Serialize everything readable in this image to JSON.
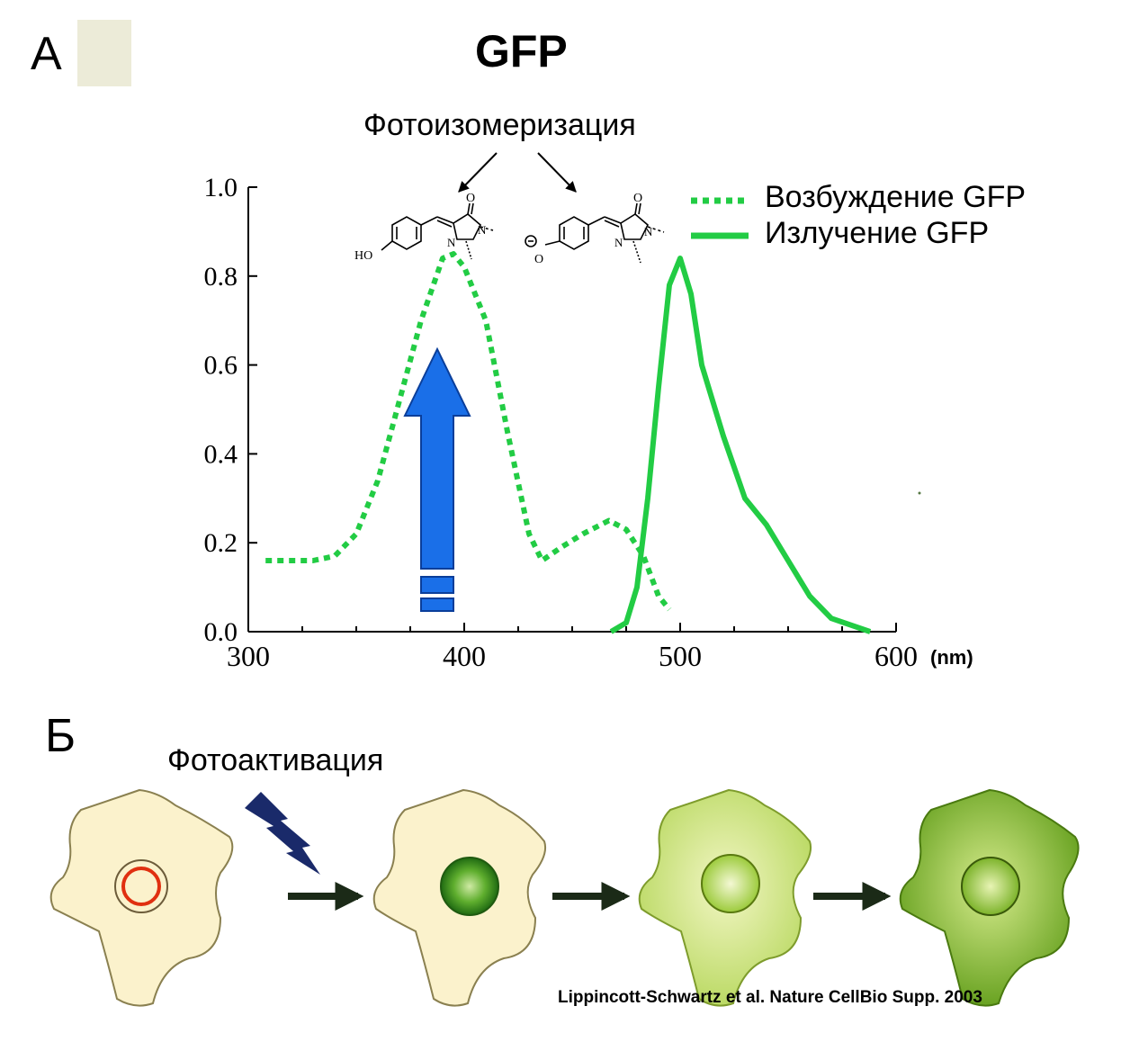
{
  "panel_a_label": "A",
  "panel_b_label": "Б",
  "title": "GFP",
  "photoisomerization_label": "Фотоизомеризация",
  "photoactivation_label": "Фотоактивация",
  "credit": "Lippincott-Schwartz et al. Nature CellBio Supp. 2003",
  "chromophore_neutral": {
    "ho": "HO",
    "o": "O",
    "n1": "N",
    "n2": "N"
  },
  "chromophore_anionic": {
    "o": "O",
    "n1": "N",
    "n2": "N"
  },
  "colors": {
    "gfp_green": "#22cc44",
    "arrow_blue": "#1a6fe8",
    "arrow_dark": "#1a2a6a",
    "nucleus_red": "#e03010",
    "cell_pale": "#fbf2cc"
  },
  "chart_data": {
    "type": "line",
    "title": "GFP",
    "xlabel": "",
    "ylabel": "",
    "x_unit": "(nm)",
    "xlim": [
      300,
      600
    ],
    "ylim": [
      0,
      1.0
    ],
    "x_ticks": [
      "300",
      "400",
      "500",
      "600"
    ],
    "y_ticks": [
      "0.0",
      "0.2",
      "0.4",
      "0.6",
      "0.8",
      "1.0"
    ],
    "legend_position": "top-right",
    "series": [
      {
        "name": "Возбуждение GFP",
        "style": "dotted",
        "color": "#22cc44",
        "points": [
          [
            308,
            0.16
          ],
          [
            330,
            0.16
          ],
          [
            340,
            0.17
          ],
          [
            350,
            0.22
          ],
          [
            360,
            0.34
          ],
          [
            370,
            0.52
          ],
          [
            380,
            0.7
          ],
          [
            390,
            0.84
          ],
          [
            395,
            0.85
          ],
          [
            400,
            0.82
          ],
          [
            410,
            0.7
          ],
          [
            420,
            0.45
          ],
          [
            430,
            0.22
          ],
          [
            436,
            0.16
          ],
          [
            445,
            0.19
          ],
          [
            455,
            0.22
          ],
          [
            467,
            0.25
          ],
          [
            475,
            0.23
          ],
          [
            483,
            0.17
          ],
          [
            490,
            0.08
          ],
          [
            495,
            0.05
          ]
        ]
      },
      {
        "name": "Излучение GFP",
        "style": "solid",
        "color": "#22cc44",
        "points": [
          [
            468,
            0.0
          ],
          [
            475,
            0.02
          ],
          [
            480,
            0.1
          ],
          [
            485,
            0.3
          ],
          [
            490,
            0.55
          ],
          [
            495,
            0.78
          ],
          [
            500,
            0.84
          ],
          [
            505,
            0.76
          ],
          [
            510,
            0.6
          ],
          [
            520,
            0.44
          ],
          [
            530,
            0.3
          ],
          [
            540,
            0.24
          ],
          [
            550,
            0.16
          ],
          [
            560,
            0.08
          ],
          [
            570,
            0.03
          ],
          [
            588,
            0.0
          ]
        ]
      }
    ]
  },
  "panel_b_steps": [
    "before",
    "activated",
    "spreading",
    "filled"
  ]
}
